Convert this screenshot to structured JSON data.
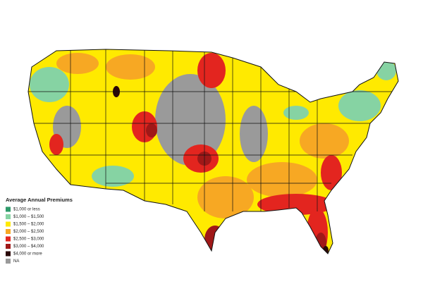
{
  "legend": {
    "title": "Average Annual Premiums",
    "items": [
      {
        "label": "$1,000 or less",
        "color": "#2e9a6a"
      },
      {
        "label": "$1,000 – $1,500",
        "color": "#86d3a3"
      },
      {
        "label": "$1,500 – $2,000",
        "color": "#ffea00"
      },
      {
        "label": "$2,000 – $2,500",
        "color": "#f7a823"
      },
      {
        "label": "$2,500 – $3,000",
        "color": "#e3251f"
      },
      {
        "label": "$3,000 – $4,000",
        "color": "#a01818"
      },
      {
        "label": "$4,000 or more",
        "color": "#2a0808"
      },
      {
        "label": "NA",
        "color": "#9a9a9a"
      }
    ]
  }
}
